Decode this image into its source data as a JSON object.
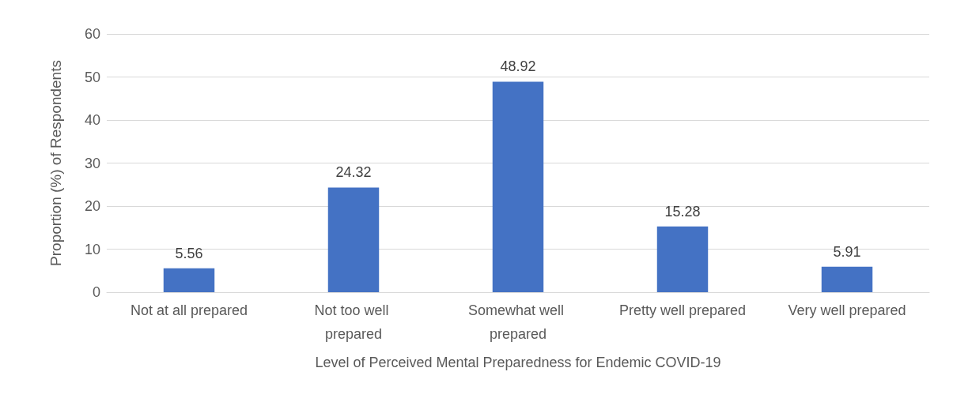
{
  "chart_data": {
    "type": "bar",
    "xlabel": "Level of Perceived Mental Preparedness for Endemic COVID-19",
    "ylabel": "Proportion (%) of Respondents",
    "categories": [
      "Not at all prepared",
      "Not too well prepared",
      "Somewhat well prepared",
      "Pretty well prepared",
      "Very well prepared"
    ],
    "values": [
      5.56,
      24.32,
      48.92,
      15.28,
      5.91
    ],
    "color": "#4472c4",
    "ylim": [
      0,
      60
    ],
    "yticks": [
      0,
      10,
      20,
      30,
      40,
      50,
      60
    ],
    "grid": "y",
    "data_labels": true
  }
}
